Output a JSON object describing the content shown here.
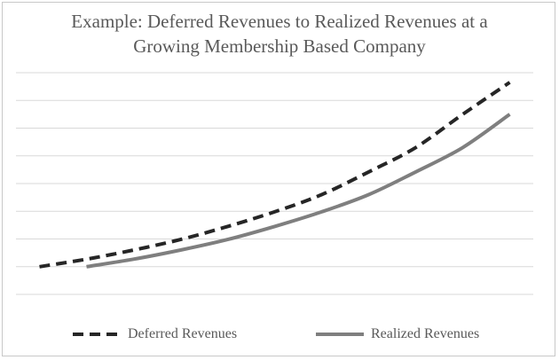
{
  "chart_data": {
    "type": "line",
    "title": "Example: Deferred Revenues to Realized Revenues at a Growing Membership Based Company",
    "title_lines": [
      "Example: Deferred Revenues to Realized Revenues at a",
      "Growing Membership Based Company"
    ],
    "xlabel": "",
    "ylabel": "",
    "x": [
      1,
      2,
      3,
      4,
      5,
      6,
      7,
      8,
      9,
      10,
      11
    ],
    "xlim": [
      0.5,
      11.5
    ],
    "ylim": [
      0,
      8
    ],
    "grid": true,
    "gridlines": [
      1,
      2,
      3,
      4,
      5,
      6,
      7,
      8
    ],
    "legend_position": "bottom",
    "series": [
      {
        "name": "Deferred Revenues",
        "style": "dashed",
        "color": "#262626",
        "values": [
          1.0,
          1.27,
          1.6,
          1.98,
          2.45,
          2.98,
          3.6,
          4.42,
          5.3,
          6.5,
          7.65
        ]
      },
      {
        "name": "Realized Revenues",
        "style": "solid",
        "color": "#7f7f7f",
        "values": [
          null,
          1.0,
          1.27,
          1.6,
          1.98,
          2.45,
          2.98,
          3.6,
          4.42,
          5.3,
          6.5
        ]
      }
    ]
  },
  "colors": {
    "gridline": "#d9d9d9",
    "text": "#595959",
    "border": "#c8c8c8"
  }
}
